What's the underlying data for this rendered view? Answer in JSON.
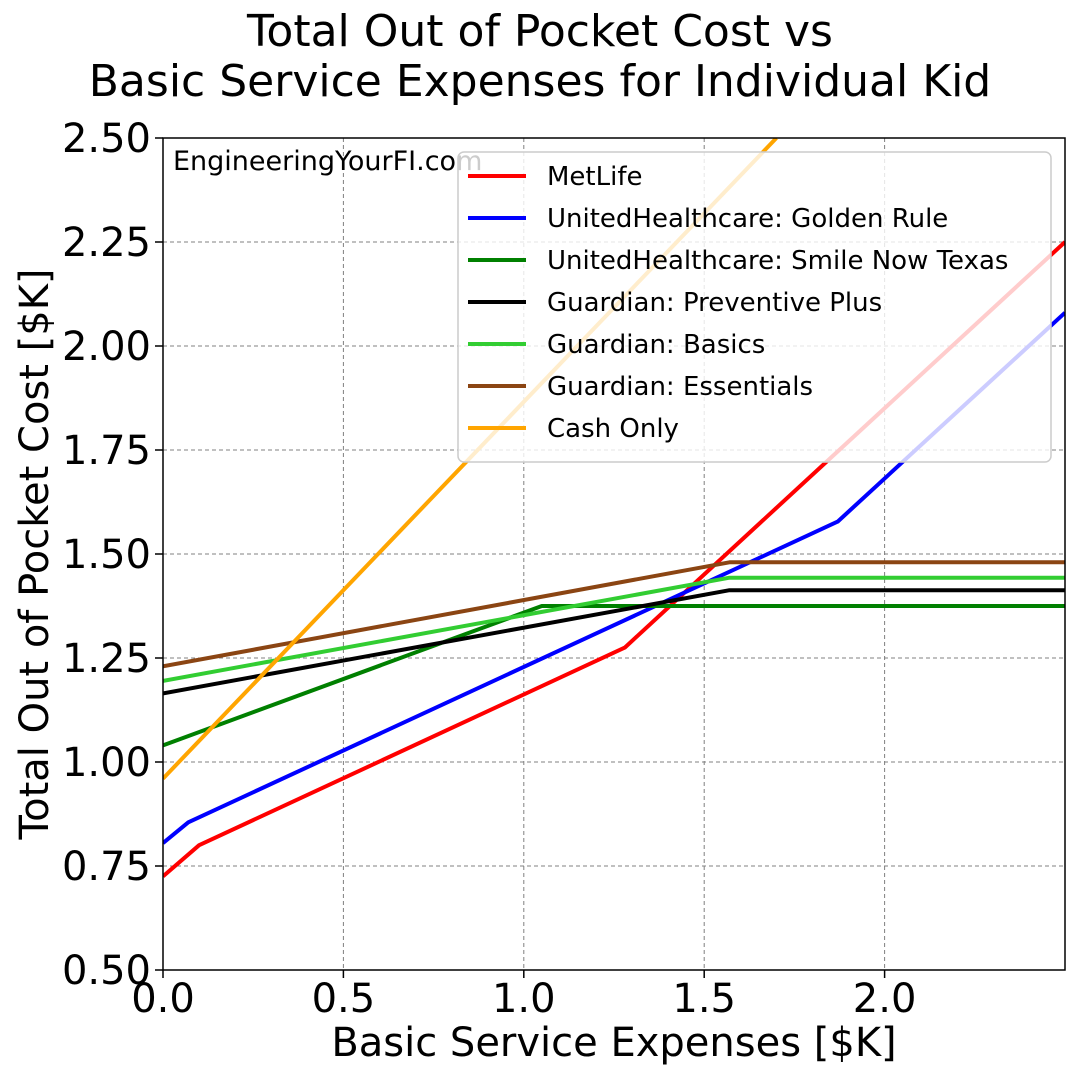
{
  "chart_data": {
    "type": "line",
    "title": "Total Out of Pocket Cost vs\nBasic Service Expenses for Individual Kid",
    "xlabel": "Basic Service Expenses [$K]",
    "ylabel": "Total Out of Pocket Cost [$K]",
    "xlim": [
      0,
      2.5
    ],
    "ylim": [
      0.5,
      2.5
    ],
    "xticks": [
      0.0,
      0.5,
      1.0,
      1.5,
      2.0
    ],
    "yticks": [
      0.5,
      0.75,
      1.0,
      1.25,
      1.5,
      1.75,
      2.0,
      2.25,
      2.5
    ],
    "xtick_labels": [
      "0.0",
      "0.5",
      "1.0",
      "1.5",
      "2.0"
    ],
    "ytick_labels": [
      "0.50",
      "0.75",
      "1.00",
      "1.25",
      "1.50",
      "1.75",
      "2.00",
      "2.25",
      "2.50"
    ],
    "grid": true,
    "legend_position": "top-right",
    "watermark": "EngineeringYourFI.com",
    "series": [
      {
        "name": "MetLife",
        "color": "#ff0000",
        "points": [
          [
            0,
            0.725
          ],
          [
            0.1,
            0.8
          ],
          [
            1.28,
            1.275
          ],
          [
            2.5,
            2.25
          ]
        ]
      },
      {
        "name": "UnitedHealthcare: Golden Rule",
        "color": "#0000ff",
        "points": [
          [
            0,
            0.805
          ],
          [
            0.07,
            0.855
          ],
          [
            1.87,
            1.578
          ],
          [
            2.5,
            2.08
          ]
        ]
      },
      {
        "name": "UnitedHealthcare: Smile Now Texas",
        "color": "#008000",
        "points": [
          [
            0,
            1.04
          ],
          [
            1.05,
            1.375
          ],
          [
            2.5,
            1.375
          ]
        ]
      },
      {
        "name": "Guardian: Preventive Plus",
        "color": "#000000",
        "points": [
          [
            0,
            1.165
          ],
          [
            1.57,
            1.413
          ],
          [
            2.5,
            1.413
          ]
        ]
      },
      {
        "name": "Guardian: Basics",
        "color": "#32cd32",
        "points": [
          [
            0,
            1.195
          ],
          [
            1.57,
            1.443
          ],
          [
            2.5,
            1.443
          ]
        ]
      },
      {
        "name": "Guardian: Essentials",
        "color": "#8b4513",
        "points": [
          [
            0,
            1.23
          ],
          [
            1.57,
            1.48
          ],
          [
            2.5,
            1.48
          ]
        ]
      },
      {
        "name": "Cash Only",
        "color": "#ffa500",
        "points": [
          [
            0,
            0.96
          ],
          [
            1.7,
            2.5
          ]
        ]
      }
    ]
  }
}
